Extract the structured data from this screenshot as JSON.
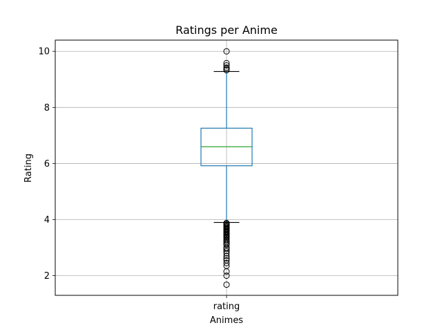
{
  "chart_data": {
    "type": "box",
    "title": "Ratings per Anime",
    "xlabel": "Animes",
    "ylabel": "Rating",
    "categories": [
      "rating"
    ],
    "ylim": [
      1.3,
      10.4
    ],
    "yticks": [
      2,
      4,
      6,
      8,
      10
    ],
    "grid": true,
    "series": [
      {
        "values": {
          "q1": 5.92,
          "median": 6.6,
          "q3": 7.26,
          "whisker_low": 3.9,
          "whisker_high": 9.28,
          "outliers_high": [
            9.33,
            9.37,
            9.42,
            9.5,
            9.58,
            10.0
          ],
          "outliers_low": [
            3.88,
            3.85,
            3.82,
            3.78,
            3.75,
            3.72,
            3.68,
            3.65,
            3.62,
            3.58,
            3.55,
            3.52,
            3.48,
            3.45,
            3.42,
            3.38,
            3.35,
            3.3,
            3.25,
            3.2,
            3.15,
            3.1,
            3.0,
            2.95,
            2.88,
            2.8,
            2.7,
            2.62,
            2.55,
            2.45,
            2.35,
            2.15,
            2.0,
            1.68
          ]
        }
      }
    ],
    "colors": {
      "box": "#1f77b4",
      "median": "#2ca02c",
      "whisker_cap": "#000000",
      "grid": "#b0b0b0"
    }
  }
}
